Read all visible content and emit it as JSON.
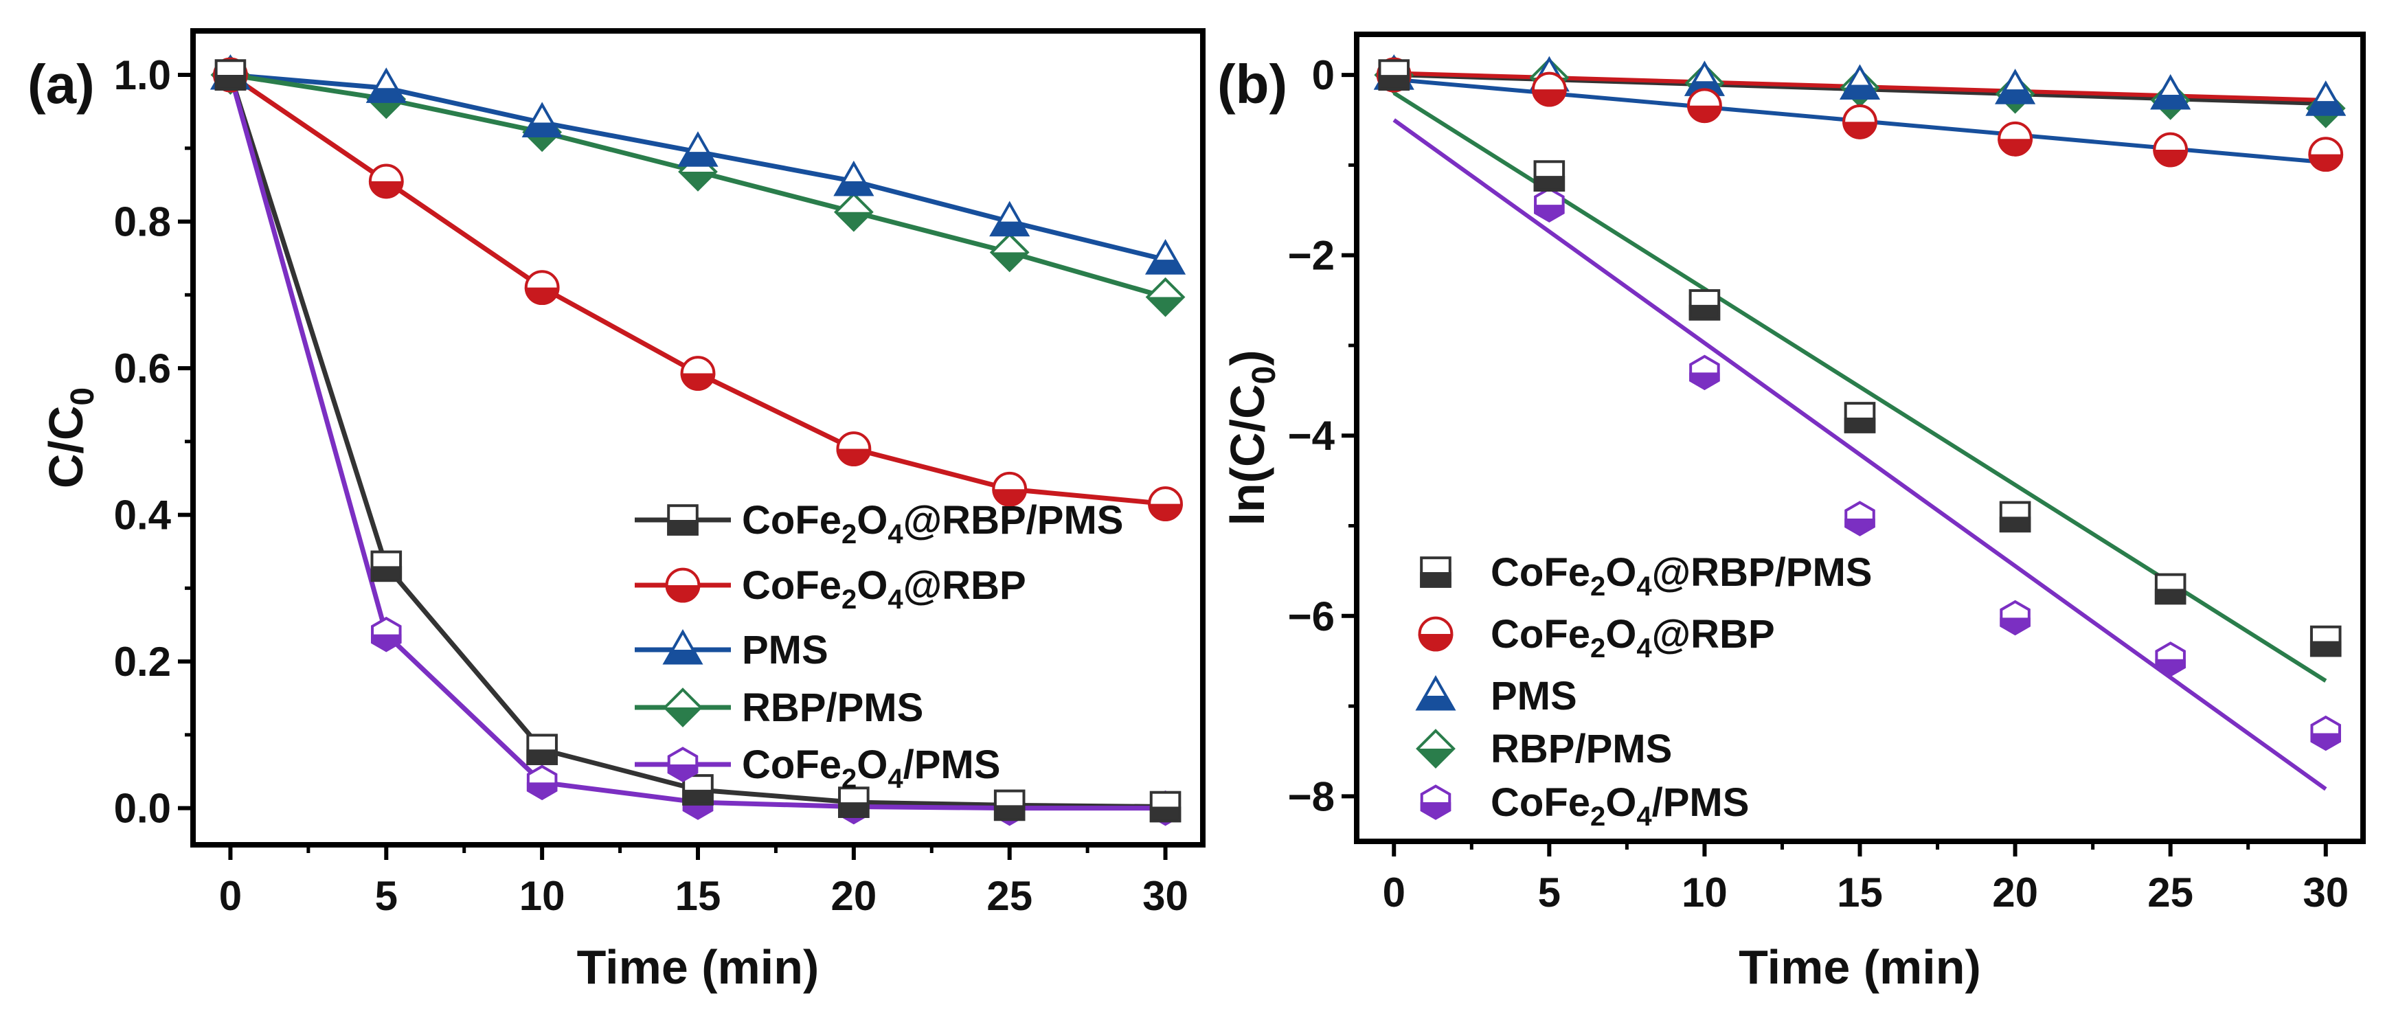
{
  "chart_data": [
    {
      "panel_label": "(a)",
      "type": "line",
      "xlabel": "Time (min)",
      "ylabel_main": "C/C",
      "ylabel_sub": "0",
      "xlim": [
        -1.2,
        31.2
      ],
      "ylim": [
        -0.05,
        1.06
      ],
      "x": [
        0,
        5,
        10,
        15,
        20,
        25,
        30
      ],
      "xticks": [
        "0",
        "5",
        "10",
        "15",
        "20",
        "25",
        "30"
      ],
      "yticks": [
        "0.0",
        "0.2",
        "0.4",
        "0.6",
        "0.8",
        "1.0"
      ],
      "legend_position": "bottom-right",
      "series": [
        {
          "name": "CoFe2O4@RBP/PMS",
          "label_parts": [
            "CoFe",
            "2",
            "O",
            "4",
            "@RBP/PMS"
          ],
          "color": "#333333",
          "marker": "square",
          "values": [
            1.0,
            0.33,
            0.08,
            0.025,
            0.008,
            0.004,
            0.002
          ]
        },
        {
          "name": "CoFe2O4@RBP",
          "label_parts": [
            "CoFe",
            "2",
            "O",
            "4",
            "@RBP"
          ],
          "color": "#c8191e",
          "marker": "circle",
          "values": [
            1.0,
            0.855,
            0.71,
            0.593,
            0.49,
            0.435,
            0.415
          ]
        },
        {
          "name": "PMS",
          "label_parts": [
            "PMS"
          ],
          "color": "#174f9c",
          "marker": "triangle",
          "values": [
            1.0,
            0.982,
            0.935,
            0.895,
            0.855,
            0.8,
            0.748
          ]
        },
        {
          "name": "RBP/PMS",
          "label_parts": [
            "RBP/PMS"
          ],
          "color": "#2a7d4b",
          "marker": "diamond",
          "values": [
            1.0,
            0.967,
            0.922,
            0.868,
            0.813,
            0.758,
            0.697
          ]
        },
        {
          "name": "CoFe2O4/PMS",
          "label_parts": [
            "CoFe",
            "2",
            "O",
            "4",
            "/PMS"
          ],
          "color": "#7b2fc2",
          "marker": "hexagon",
          "values": [
            1.0,
            0.237,
            0.035,
            0.008,
            0.002,
            0.0,
            0.0
          ]
        }
      ]
    },
    {
      "panel_label": "(b)",
      "type": "scatter",
      "xlabel": "Time (min)",
      "ylabel_main": "ln(C/C",
      "ylabel_sub": "0",
      "ylabel_end": ")",
      "xlim": [
        -1.2,
        31.2
      ],
      "ylim": [
        -8.5,
        0.45
      ],
      "x": [
        0,
        5,
        10,
        15,
        20,
        25,
        30
      ],
      "xticks": [
        "0",
        "5",
        "10",
        "15",
        "20",
        "25",
        "30"
      ],
      "yticks": [
        "0",
        "−2",
        "−4",
        "−6",
        "−8"
      ],
      "ytick_values": [
        0,
        -2,
        -4,
        -6,
        -8
      ],
      "legend_position": "bottom-left",
      "series": [
        {
          "name": "CoFe2O4@RBP/PMS",
          "label_parts": [
            "CoFe",
            "2",
            "O",
            "4",
            "@RBP/PMS"
          ],
          "color": "#333333",
          "marker": "square",
          "values": [
            0,
            -1.12,
            -2.55,
            -3.8,
            -4.9,
            -5.7,
            -6.28
          ]
        },
        {
          "name": "CoFe2O4@RBP",
          "label_parts": [
            "CoFe",
            "2",
            "O",
            "4",
            "@RBP"
          ],
          "color": "#c8191e",
          "marker": "circle",
          "values": [
            0,
            -0.16,
            -0.34,
            -0.52,
            -0.71,
            -0.83,
            -0.88
          ]
        },
        {
          "name": "PMS",
          "label_parts": [
            "PMS"
          ],
          "color": "#174f9c",
          "marker": "triangle",
          "values": [
            0,
            -0.02,
            -0.07,
            -0.11,
            -0.16,
            -0.22,
            -0.29
          ]
        },
        {
          "name": "RBP/PMS",
          "label_parts": [
            "RBP/PMS"
          ],
          "color": "#2a7d4b",
          "marker": "diamond",
          "values": [
            0,
            -0.03,
            -0.09,
            -0.14,
            -0.21,
            -0.28,
            -0.37
          ]
        },
        {
          "name": "CoFe2O4/PMS",
          "label_parts": [
            "CoFe",
            "2",
            "O",
            "4",
            "/PMS"
          ],
          "color": "#7b2fc2",
          "marker": "hexagon",
          "values": [
            0,
            -1.44,
            -3.3,
            -4.92,
            -6.02,
            -6.48,
            -7.3
          ]
        }
      ],
      "fit_lines": [
        {
          "color": "#333333",
          "x": [
            0,
            30
          ],
          "y": [
            0.0,
            -0.32
          ]
        },
        {
          "color": "#c8191e",
          "x": [
            0,
            30
          ],
          "y": [
            0.02,
            -0.28
          ]
        },
        {
          "color": "#174f9c",
          "x": [
            0,
            30
          ],
          "y": [
            -0.05,
            -0.97
          ]
        },
        {
          "color": "#2a7d4b",
          "x": [
            0,
            30
          ],
          "y": [
            -0.2,
            -6.72
          ]
        },
        {
          "color": "#7b2fc2",
          "x": [
            0,
            30
          ],
          "y": [
            -0.5,
            -7.92
          ]
        }
      ]
    }
  ]
}
